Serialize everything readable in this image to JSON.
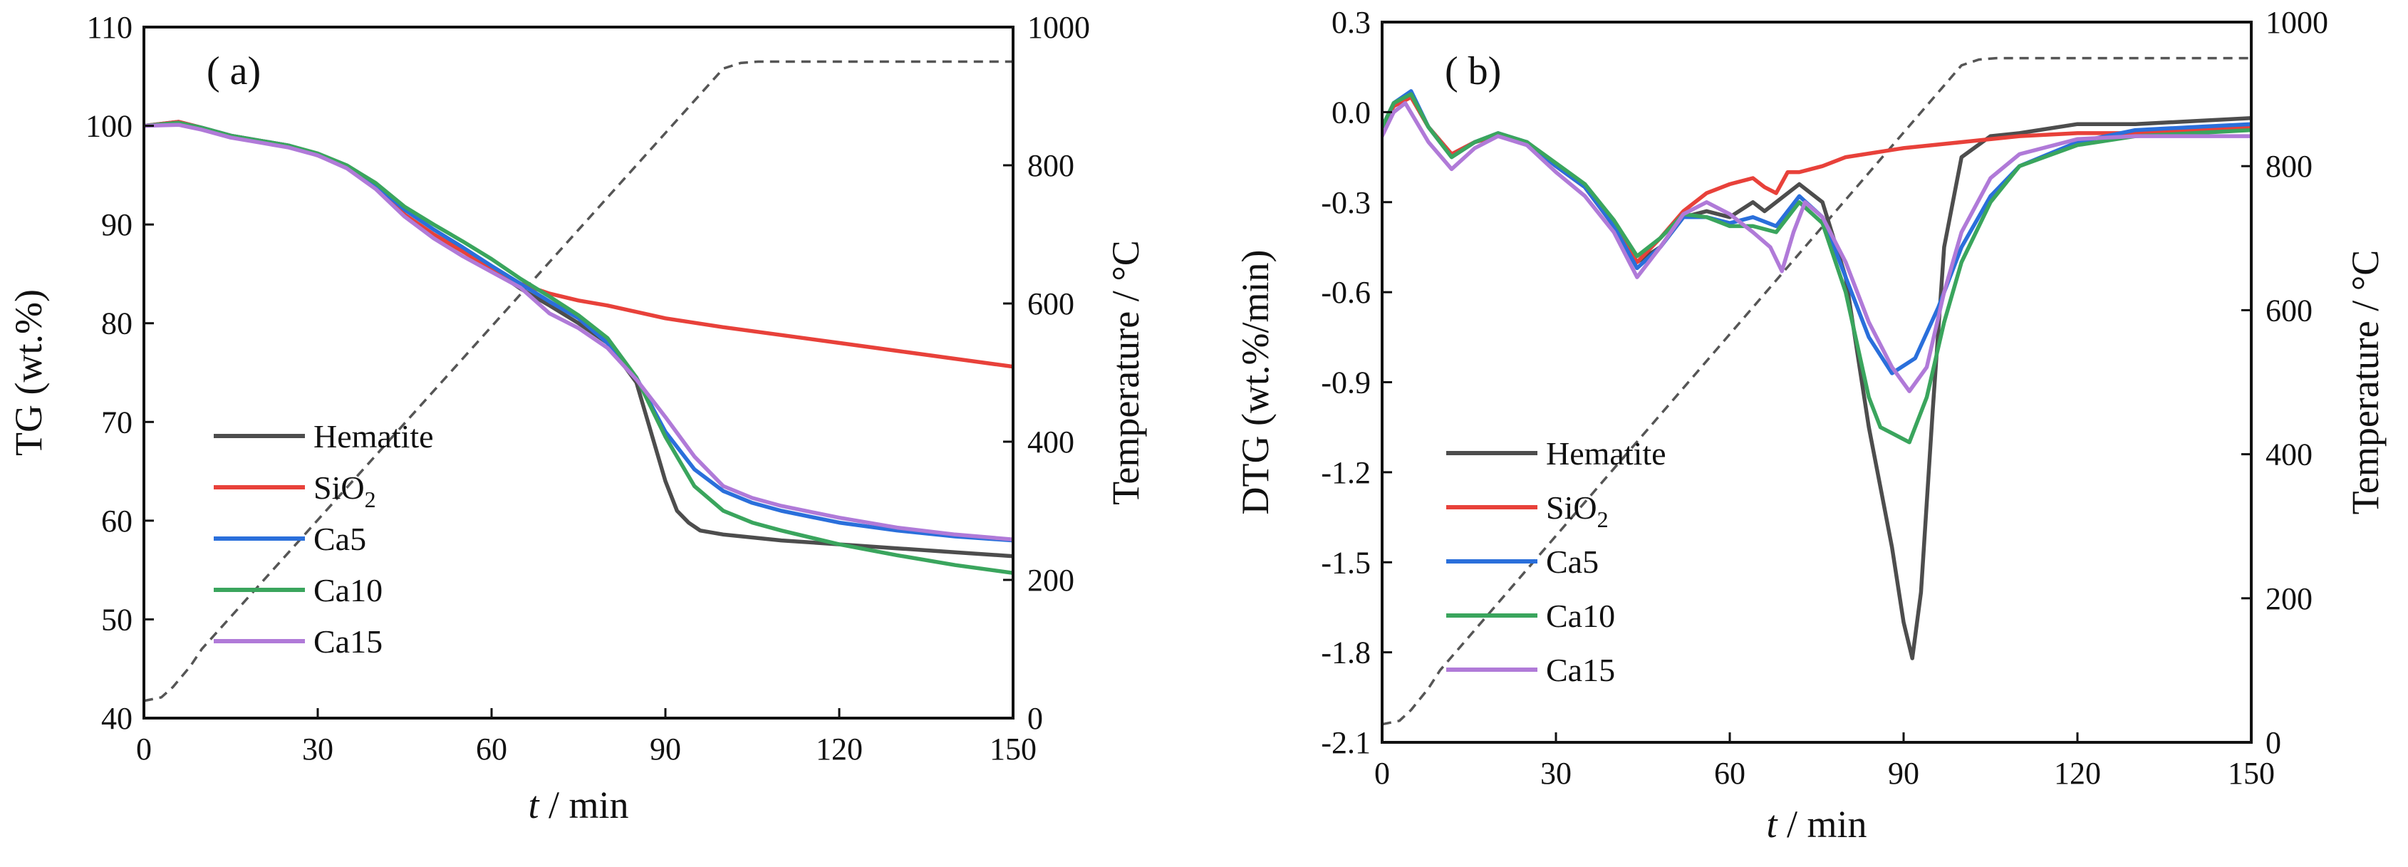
{
  "chart_data": [
    {
      "type": "line",
      "panel_label": "( a)",
      "xlabel_italic": "t",
      "xlabel_rest": " / min",
      "ylabel": "TG (wt.%)",
      "y2label": "Temperature / °C",
      "xlim": [
        0,
        150
      ],
      "ylim": [
        40,
        110
      ],
      "y2lim": [
        0,
        1000
      ],
      "xticks": [
        0,
        30,
        60,
        90,
        120,
        150
      ],
      "yticks": [
        40,
        50,
        60,
        70,
        80,
        90,
        100,
        110
      ],
      "y2ticks": [
        0,
        200,
        400,
        600,
        800,
        1000
      ],
      "legend_position": "bottom-left",
      "series": [
        {
          "name": "Hematite",
          "sub": "",
          "color": "#4d4d4d",
          "x": [
            0,
            6,
            10,
            15,
            20,
            25,
            30,
            35,
            40,
            45,
            50,
            55,
            60,
            65,
            70,
            75,
            80,
            85,
            88,
            90,
            92,
            94,
            96,
            100,
            110,
            120,
            130,
            140,
            150
          ],
          "y": [
            100,
            100.4,
            99.8,
            99,
            98.5,
            98,
            97,
            95.8,
            93.8,
            91,
            89,
            87.3,
            85.5,
            83.5,
            81.8,
            80,
            78,
            74,
            68,
            64,
            61,
            59.8,
            59,
            58.6,
            58,
            57.6,
            57.2,
            56.8,
            56.4
          ]
        },
        {
          "name": "SiO",
          "sub": "2",
          "color": "#e8413a",
          "x": [
            0,
            6,
            10,
            15,
            20,
            25,
            30,
            35,
            40,
            45,
            50,
            55,
            60,
            65,
            70,
            75,
            80,
            90,
            100,
            110,
            120,
            130,
            140,
            150
          ],
          "y": [
            100,
            100.4,
            99.8,
            99,
            98.5,
            98,
            97,
            95.8,
            93.8,
            91,
            89,
            87.3,
            85.5,
            84,
            83,
            82.3,
            81.8,
            80.5,
            79.6,
            78.8,
            78,
            77.2,
            76.4,
            75.6
          ]
        },
        {
          "name": "Ca5",
          "sub": "",
          "color": "#2a6fdb",
          "x": [
            0,
            6,
            10,
            15,
            20,
            25,
            30,
            35,
            40,
            45,
            50,
            55,
            60,
            65,
            70,
            75,
            80,
            85,
            90,
            95,
            100,
            105,
            110,
            120,
            130,
            140,
            150
          ],
          "y": [
            100,
            100.3,
            99.8,
            99,
            98.5,
            98,
            97.1,
            95.9,
            94,
            91.5,
            89.5,
            87.7,
            85.8,
            84,
            82.2,
            80.5,
            78,
            74.5,
            69,
            65.2,
            63,
            61.8,
            61,
            59.8,
            59,
            58.4,
            58
          ]
        },
        {
          "name": "Ca10",
          "sub": "",
          "color": "#3aa55d",
          "x": [
            0,
            6,
            10,
            15,
            20,
            25,
            30,
            35,
            40,
            45,
            50,
            55,
            60,
            65,
            70,
            75,
            80,
            85,
            90,
            95,
            100,
            105,
            110,
            120,
            130,
            140,
            150
          ],
          "y": [
            100,
            100.3,
            99.8,
            99,
            98.5,
            98,
            97.2,
            96,
            94.2,
            91.8,
            90,
            88.3,
            86.5,
            84.5,
            82.7,
            80.8,
            78.5,
            74.5,
            68.5,
            63.5,
            61,
            59.8,
            59,
            57.6,
            56.5,
            55.5,
            54.7
          ]
        },
        {
          "name": "Ca15",
          "sub": "",
          "color": "#b07ad8",
          "x": [
            0,
            6,
            10,
            15,
            20,
            25,
            30,
            35,
            40,
            45,
            50,
            55,
            60,
            65,
            70,
            75,
            80,
            85,
            90,
            95,
            100,
            105,
            110,
            120,
            130,
            140,
            150
          ],
          "y": [
            100,
            100.1,
            99.6,
            98.8,
            98.3,
            97.8,
            97,
            95.7,
            93.6,
            90.8,
            88.6,
            86.8,
            85.2,
            83.6,
            81,
            79.5,
            77.5,
            74.3,
            70.5,
            66.5,
            63.5,
            62.3,
            61.5,
            60.3,
            59.3,
            58.6,
            58.1
          ]
        }
      ],
      "temperature": {
        "color": "#555555",
        "x": [
          0,
          3,
          5,
          8,
          10,
          100,
          103,
          106,
          150
        ],
        "t": [
          25,
          30,
          45,
          75,
          100,
          940,
          948,
          950,
          950
        ]
      }
    },
    {
      "type": "line",
      "panel_label": "( b)",
      "xlabel_italic": "t",
      "xlabel_rest": " / min",
      "ylabel": "DTG (wt.%/min)",
      "y2label": "Temperature / °C",
      "xlim": [
        0,
        150
      ],
      "ylim": [
        -2.1,
        0.3
      ],
      "y2lim": [
        0,
        1000
      ],
      "xticks": [
        0,
        30,
        60,
        90,
        120,
        150
      ],
      "yticks": [
        -2.1,
        -1.8,
        -1.5,
        -1.2,
        -0.9,
        -0.6,
        -0.3,
        0.0,
        0.3
      ],
      "ytick_labels": [
        "-2.1",
        "-1.8",
        "-1.5",
        "-1.2",
        "-0.9",
        "-0.6",
        "-0.3",
        "0.0",
        "0.3"
      ],
      "y2ticks": [
        0,
        200,
        400,
        600,
        800,
        1000
      ],
      "legend_position": "bottom-left",
      "series": [
        {
          "name": "Hematite",
          "sub": "",
          "color": "#4d4d4d",
          "x": [
            0,
            2,
            5,
            8,
            12,
            16,
            20,
            25,
            30,
            35,
            40,
            44,
            48,
            52,
            56,
            60,
            64,
            66,
            68,
            72,
            76,
            80,
            84,
            86,
            88,
            90,
            91.5,
            93,
            95,
            97,
            100,
            105,
            110,
            120,
            130,
            140,
            150
          ],
          "y": [
            -0.05,
            0.02,
            0.05,
            -0.05,
            -0.14,
            -0.1,
            -0.08,
            -0.1,
            -0.18,
            -0.25,
            -0.38,
            -0.5,
            -0.45,
            -0.35,
            -0.33,
            -0.35,
            -0.3,
            -0.33,
            -0.3,
            -0.24,
            -0.3,
            -0.55,
            -1.05,
            -1.25,
            -1.45,
            -1.7,
            -1.82,
            -1.6,
            -1.0,
            -0.45,
            -0.15,
            -0.08,
            -0.07,
            -0.04,
            -0.04,
            -0.03,
            -0.02
          ]
        },
        {
          "name": "SiO",
          "sub": "2",
          "color": "#e8413a",
          "x": [
            0,
            2,
            5,
            8,
            12,
            16,
            20,
            25,
            30,
            35,
            40,
            44,
            48,
            52,
            56,
            60,
            64,
            66,
            68,
            70,
            72,
            76,
            80,
            90,
            100,
            110,
            120,
            130,
            140,
            150
          ],
          "y": [
            -0.05,
            0.02,
            0.05,
            -0.05,
            -0.14,
            -0.1,
            -0.08,
            -0.1,
            -0.18,
            -0.25,
            -0.38,
            -0.5,
            -0.42,
            -0.33,
            -0.27,
            -0.24,
            -0.22,
            -0.25,
            -0.27,
            -0.2,
            -0.2,
            -0.18,
            -0.15,
            -0.12,
            -0.1,
            -0.08,
            -0.07,
            -0.07,
            -0.06,
            -0.05
          ]
        },
        {
          "name": "Ca5",
          "sub": "",
          "color": "#2a6fdb",
          "x": [
            0,
            2,
            5,
            8,
            12,
            16,
            20,
            25,
            30,
            35,
            40,
            44,
            48,
            52,
            56,
            60,
            64,
            68,
            72,
            76,
            80,
            84,
            88,
            92,
            96,
            100,
            105,
            110,
            120,
            130,
            140,
            150
          ],
          "y": [
            -0.05,
            0.03,
            0.07,
            -0.05,
            -0.15,
            -0.1,
            -0.07,
            -0.1,
            -0.18,
            -0.25,
            -0.38,
            -0.52,
            -0.45,
            -0.35,
            -0.35,
            -0.37,
            -0.35,
            -0.38,
            -0.28,
            -0.35,
            -0.55,
            -0.75,
            -0.87,
            -0.82,
            -0.65,
            -0.45,
            -0.28,
            -0.18,
            -0.1,
            -0.06,
            -0.05,
            -0.04
          ]
        },
        {
          "name": "Ca10",
          "sub": "",
          "color": "#3aa55d",
          "x": [
            0,
            2,
            5,
            8,
            12,
            16,
            20,
            25,
            30,
            35,
            40,
            44,
            48,
            52,
            56,
            60,
            64,
            68,
            72,
            76,
            80,
            84,
            86,
            88,
            91,
            94,
            97,
            100,
            105,
            110,
            120,
            130,
            140,
            150
          ],
          "y": [
            -0.05,
            0.03,
            0.06,
            -0.05,
            -0.15,
            -0.1,
            -0.07,
            -0.1,
            -0.17,
            -0.24,
            -0.36,
            -0.48,
            -0.42,
            -0.34,
            -0.35,
            -0.38,
            -0.38,
            -0.4,
            -0.3,
            -0.37,
            -0.6,
            -0.95,
            -1.05,
            -1.07,
            -1.1,
            -0.95,
            -0.7,
            -0.5,
            -0.3,
            -0.18,
            -0.11,
            -0.08,
            -0.07,
            -0.06
          ]
        },
        {
          "name": "Ca15",
          "sub": "",
          "color": "#b07ad8",
          "x": [
            0,
            2,
            4,
            8,
            12,
            16,
            20,
            25,
            30,
            35,
            40,
            44,
            48,
            52,
            56,
            60,
            64,
            67,
            69,
            71,
            73,
            76,
            80,
            84,
            88,
            91,
            94,
            97,
            100,
            105,
            110,
            120,
            130,
            140,
            150
          ],
          "y": [
            -0.08,
            0.0,
            0.03,
            -0.1,
            -0.19,
            -0.12,
            -0.08,
            -0.11,
            -0.2,
            -0.28,
            -0.4,
            -0.55,
            -0.45,
            -0.34,
            -0.3,
            -0.34,
            -0.4,
            -0.45,
            -0.53,
            -0.4,
            -0.3,
            -0.35,
            -0.5,
            -0.7,
            -0.85,
            -0.93,
            -0.85,
            -0.6,
            -0.4,
            -0.22,
            -0.14,
            -0.09,
            -0.08,
            -0.08,
            -0.08
          ]
        }
      ],
      "temperature": {
        "color": "#555555",
        "x": [
          0,
          3,
          5,
          8,
          10,
          100,
          103,
          106,
          150
        ],
        "t": [
          25,
          30,
          45,
          75,
          100,
          940,
          948,
          950,
          950
        ]
      }
    }
  ]
}
